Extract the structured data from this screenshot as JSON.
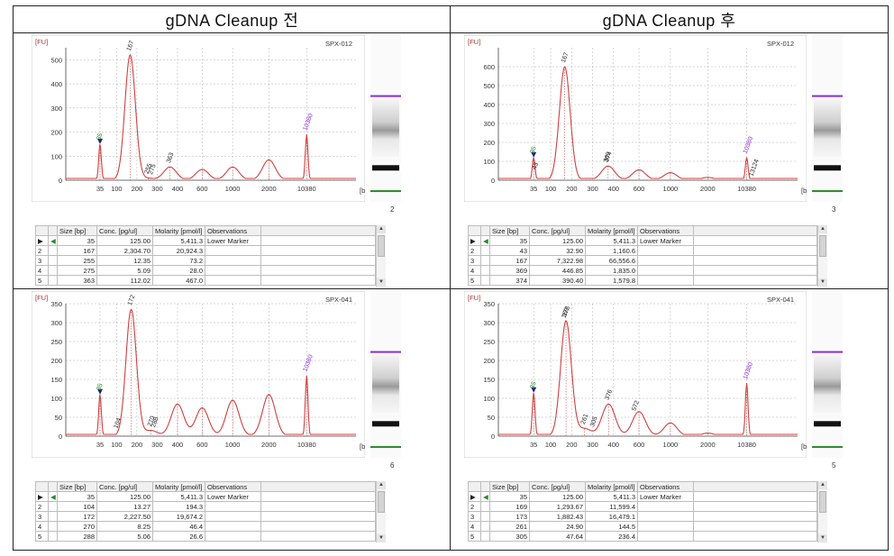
{
  "headers": {
    "left": "gDNA  Cleanup  전",
    "right": "gDNA  Cleanup  후"
  },
  "table_columns": [
    "Size [bp]",
    "Conc. [pg/ul]",
    "Molarity [pmol/l]",
    "Observations"
  ],
  "colors": {
    "trace": "#d04040",
    "marker_green": "#2a8a2a",
    "upper_purple": "#8a2be2",
    "axis": "#444444",
    "grid": "#b0b0b0"
  },
  "chart_data": [
    {
      "type": "line",
      "sample": "SPX-012",
      "lane": "2",
      "ylabel": "[FU]",
      "xlabel": "[bp]",
      "yticks": [
        0,
        100,
        200,
        300,
        400,
        500
      ],
      "ylim": [
        0,
        550
      ],
      "xticks": [
        "35",
        "100",
        "200",
        "300",
        "400",
        "600",
        "1000",
        "2000",
        "10380"
      ],
      "peak_labels": [
        "35",
        "167",
        "255",
        "275",
        "363",
        "10380"
      ],
      "series": [
        {
          "points": [
            [
              35,
              150
            ],
            [
              167,
              520
            ],
            [
              255,
              8
            ],
            [
              363,
              55
            ],
            [
              600,
              45
            ],
            [
              1000,
              55
            ],
            [
              2000,
              85
            ],
            [
              10380,
              190
            ]
          ]
        }
      ],
      "table": [
        [
          "1",
          "35",
          "125.00",
          "5,411.3",
          "Lower Marker"
        ],
        [
          "2",
          "167",
          "2,304.70",
          "20,924.3",
          ""
        ],
        [
          "3",
          "255",
          "12.35",
          "73.2",
          ""
        ],
        [
          "4",
          "275",
          "5.09",
          "28.0",
          ""
        ],
        [
          "5",
          "363",
          "112.02",
          "467.0",
          ""
        ]
      ]
    },
    {
      "type": "line",
      "sample": "SPX-012",
      "lane": "3",
      "ylabel": "[FU]",
      "xlabel": "[bp]",
      "yticks": [
        0,
        100,
        200,
        300,
        400,
        500,
        600
      ],
      "ylim": [
        0,
        700
      ],
      "xticks": [
        "35",
        "100",
        "200",
        "300",
        "400",
        "600",
        "1000",
        "2000",
        "10380"
      ],
      "peak_labels": [
        "35",
        "43",
        "167",
        "369",
        "374",
        "13124",
        "10380"
      ],
      "series": [
        {
          "points": [
            [
              35,
              120
            ],
            [
              167,
              600
            ],
            [
              374,
              75
            ],
            [
              600,
              55
            ],
            [
              1000,
              40
            ],
            [
              2000,
              15
            ],
            [
              10380,
              120
            ]
          ]
        }
      ],
      "table": [
        [
          "1",
          "35",
          "125.00",
          "5,411.3",
          "Lower Marker"
        ],
        [
          "2",
          "43",
          "32.90",
          "1,160.6",
          ""
        ],
        [
          "3",
          "167",
          "7,322.98",
          "66,556.6",
          ""
        ],
        [
          "4",
          "369",
          "446.85",
          "1,835.0",
          ""
        ],
        [
          "5",
          "374",
          "390.40",
          "1,579.8",
          ""
        ]
      ]
    },
    {
      "type": "line",
      "sample": "SPX-041",
      "lane": "6",
      "ylabel": "[FU]",
      "xlabel": "[bp]",
      "yticks": [
        0,
        50,
        100,
        150,
        200,
        250,
        300,
        350
      ],
      "ylim": [
        0,
        350
      ],
      "xticks": [
        "35",
        "100",
        "200",
        "300",
        "400",
        "600",
        "1000",
        "2000",
        "10380"
      ],
      "peak_labels": [
        "35",
        "104",
        "172",
        "270",
        "288",
        "10380"
      ],
      "series": [
        {
          "points": [
            [
              35,
              110
            ],
            [
              172,
              335
            ],
            [
              270,
              15
            ],
            [
              400,
              85
            ],
            [
              600,
              75
            ],
            [
              1000,
              95
            ],
            [
              2000,
              110
            ],
            [
              10380,
              160
            ]
          ]
        }
      ],
      "table": [
        [
          "1",
          "35",
          "125.00",
          "5,411.3",
          "Lower Marker"
        ],
        [
          "2",
          "104",
          "13.27",
          "194.3",
          ""
        ],
        [
          "3",
          "172",
          "2,227.50",
          "19,674.2",
          ""
        ],
        [
          "4",
          "270",
          "8.25",
          "46.4",
          ""
        ],
        [
          "5",
          "288",
          "5.06",
          "26.6",
          ""
        ]
      ]
    },
    {
      "type": "line",
      "sample": "SPX-041",
      "lane": "5",
      "ylabel": "[FU]",
      "xlabel": "[bp]",
      "yticks": [
        0,
        50,
        100,
        150,
        200,
        250,
        300,
        350
      ],
      "ylim": [
        0,
        350
      ],
      "xticks": [
        "35",
        "100",
        "200",
        "300",
        "400",
        "600",
        "1000",
        "2000",
        "10380"
      ],
      "peak_labels": [
        "35",
        "169",
        "173",
        "261",
        "305",
        "376",
        "572",
        "10380"
      ],
      "series": [
        {
          "points": [
            [
              35,
              115
            ],
            [
              173,
              305
            ],
            [
              261,
              20
            ],
            [
              376,
              85
            ],
            [
              600,
              65
            ],
            [
              1000,
              35
            ],
            [
              2000,
              8
            ],
            [
              10380,
              140
            ]
          ]
        }
      ],
      "table": [
        [
          "1",
          "35",
          "125.00",
          "5,411.3",
          "Lower Marker"
        ],
        [
          "2",
          "169",
          "1,293.67",
          "11,599.4",
          ""
        ],
        [
          "3",
          "173",
          "1,882.43",
          "16,479.1",
          ""
        ],
        [
          "4",
          "261",
          "24.90",
          "144.5",
          ""
        ],
        [
          "5",
          "305",
          "47.64",
          "236.4",
          ""
        ]
      ]
    }
  ]
}
